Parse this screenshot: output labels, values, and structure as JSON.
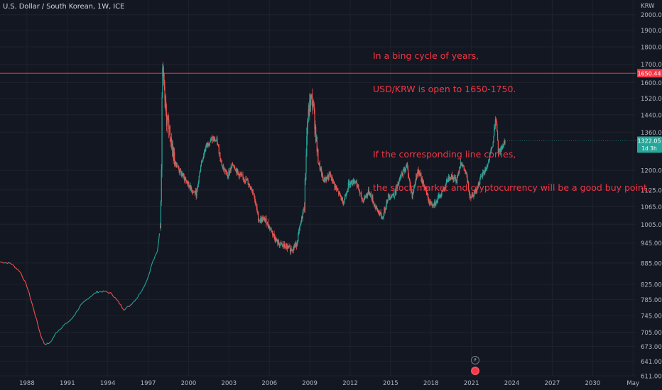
{
  "header": {
    "symbol_line": "U.S. Dollar / South Korean, 1W, ICE",
    "currency": "KRW"
  },
  "annotation": {
    "lines": [
      "In a bing cycle of years,",
      "USD/KRW is open to 1650-1750.",
      "",
      "If the corresponding line comes,",
      "the stock market and cryptocurrency will be a good buy point."
    ]
  },
  "colors": {
    "background": "#131722",
    "grid": "#1e222d",
    "up": "#26a69a",
    "down": "#ef5350",
    "annotation": "#f23645",
    "axis_text": "#b2b5be"
  },
  "icons": [
    "lightning-icon",
    "flag-icon"
  ],
  "chart_data": {
    "type": "candlestick",
    "title": "",
    "xlabel": "",
    "ylabel": "KRW",
    "x_ticks": [
      "1988",
      "1991",
      "1994",
      "1997",
      "2000",
      "2003",
      "2006",
      "2009",
      "2012",
      "2015",
      "2018",
      "2021",
      "2024",
      "2027",
      "2030",
      "May"
    ],
    "y_ticks": [
      "2000.00",
      "1900.00",
      "1800.00",
      "1700.00",
      "1600.00",
      "1520.00",
      "1440.00",
      "1360.00",
      "1200.00",
      "1125.00",
      "1065.00",
      "1005.00",
      "945.00",
      "885.00",
      "825.00",
      "785.00",
      "745.00",
      "705.00",
      "673.00",
      "641.00",
      "611.00"
    ],
    "y_scale": "log",
    "y_range": [
      611,
      2060
    ],
    "x_range": [
      1986.0,
      2033.2
    ],
    "horizontal_line": {
      "value": 1650.44,
      "label": "1650.44",
      "color": "#f23645"
    },
    "last_price": {
      "value": 1322.05,
      "label": "1322.05",
      "countdown": "1d 3h",
      "color": "#26a69a"
    },
    "path": [
      [
        1986.0,
        888
      ],
      [
        1986.8,
        884
      ],
      [
        1987.5,
        860
      ],
      [
        1988.0,
        820
      ],
      [
        1988.5,
        760
      ],
      [
        1989.0,
        700
      ],
      [
        1989.3,
        678
      ],
      [
        1989.7,
        680
      ],
      [
        1990.2,
        705
      ],
      [
        1990.7,
        720
      ],
      [
        1991.3,
        735
      ],
      [
        1992.0,
        770
      ],
      [
        1992.6,
        790
      ],
      [
        1993.2,
        805
      ],
      [
        1993.8,
        806
      ],
      [
        1994.3,
        800
      ],
      [
        1994.8,
        778
      ],
      [
        1995.2,
        760
      ],
      [
        1995.6,
        768
      ],
      [
        1996.2,
        790
      ],
      [
        1996.7,
        820
      ],
      [
        1997.0,
        845
      ],
      [
        1997.3,
        885
      ],
      [
        1997.7,
        920
      ],
      [
        1997.9,
        1000
      ],
      [
        1997.98,
        1200
      ],
      [
        1998.05,
        1700
      ],
      [
        1998.15,
        1580
      ],
      [
        1998.35,
        1420
      ],
      [
        1998.6,
        1370
      ],
      [
        1998.9,
        1250
      ],
      [
        1999.3,
        1200
      ],
      [
        1999.8,
        1160
      ],
      [
        2000.3,
        1120
      ],
      [
        2000.6,
        1110
      ],
      [
        2000.9,
        1220
      ],
      [
        2001.3,
        1300
      ],
      [
        2001.7,
        1330
      ],
      [
        2002.1,
        1320
      ],
      [
        2002.5,
        1215
      ],
      [
        2002.9,
        1180
      ],
      [
        2003.3,
        1225
      ],
      [
        2003.7,
        1185
      ],
      [
        2004.3,
        1160
      ],
      [
        2004.8,
        1120
      ],
      [
        2005.2,
        1020
      ],
      [
        2005.7,
        1020
      ],
      [
        2006.2,
        980
      ],
      [
        2006.6,
        945
      ],
      [
        2007.1,
        935
      ],
      [
        2007.6,
        925
      ],
      [
        2008.0,
        940
      ],
      [
        2008.3,
        1000
      ],
      [
        2008.6,
        1070
      ],
      [
        2008.8,
        1380
      ],
      [
        2009.05,
        1520
      ],
      [
        2009.25,
        1490
      ],
      [
        2009.6,
        1240
      ],
      [
        2010.0,
        1160
      ],
      [
        2010.5,
        1180
      ],
      [
        2011.0,
        1125
      ],
      [
        2011.5,
        1080
      ],
      [
        2011.9,
        1150
      ],
      [
        2012.4,
        1160
      ],
      [
        2012.9,
        1085
      ],
      [
        2013.4,
        1120
      ],
      [
        2013.9,
        1060
      ],
      [
        2014.4,
        1025
      ],
      [
        2014.8,
        1100
      ],
      [
        2015.3,
        1110
      ],
      [
        2015.8,
        1180
      ],
      [
        2016.2,
        1220
      ],
      [
        2016.6,
        1100
      ],
      [
        2017.0,
        1200
      ],
      [
        2017.5,
        1140
      ],
      [
        2017.9,
        1075
      ],
      [
        2018.4,
        1080
      ],
      [
        2018.9,
        1125
      ],
      [
        2019.4,
        1180
      ],
      [
        2019.9,
        1160
      ],
      [
        2020.2,
        1235
      ],
      [
        2020.6,
        1185
      ],
      [
        2020.9,
        1100
      ],
      [
        2021.3,
        1120
      ],
      [
        2021.8,
        1180
      ],
      [
        2022.2,
        1220
      ],
      [
        2022.6,
        1310
      ],
      [
        2022.8,
        1440
      ],
      [
        2023.0,
        1270
      ],
      [
        2023.4,
        1310
      ],
      [
        2023.5,
        1322
      ]
    ],
    "segments": [
      {
        "from": 1986.0,
        "to": 1997.9,
        "style": "line"
      },
      {
        "from": 1997.9,
        "to": 2023.5,
        "style": "candles"
      }
    ]
  }
}
